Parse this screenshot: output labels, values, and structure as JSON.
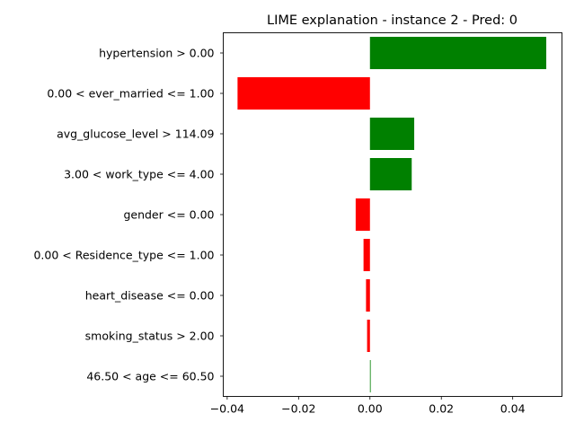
{
  "chart_data": {
    "type": "bar",
    "orientation": "horizontal",
    "title": "LIME explanation - instance 2 - Pred: 0",
    "xlabel": "",
    "ylabel": "",
    "xlim": [
      -0.0411,
      0.0538
    ],
    "xticks": [
      "−0.04",
      "−0.02",
      "0.00",
      "0.02",
      "0.04"
    ],
    "xtick_values": [
      -0.04,
      -0.02,
      0.0,
      0.02,
      0.04
    ],
    "grid": false,
    "colors": {
      "positive": "#008000",
      "negative": "#ff0000"
    },
    "categories": [
      "hypertension > 0.00",
      "0.00 < ever_married <= 1.00",
      "avg_glucose_level > 114.09",
      "3.00 < work_type <= 4.00",
      "gender <= 0.00",
      "0.00 < Residence_type <= 1.00",
      "heart_disease <= 0.00",
      "smoking_status > 2.00",
      "46.50 < age <= 60.50"
    ],
    "values": [
      0.0494,
      -0.0371,
      0.0124,
      0.0117,
      -0.004,
      -0.0018,
      -0.0011,
      -0.0008,
      0.0002
    ]
  }
}
